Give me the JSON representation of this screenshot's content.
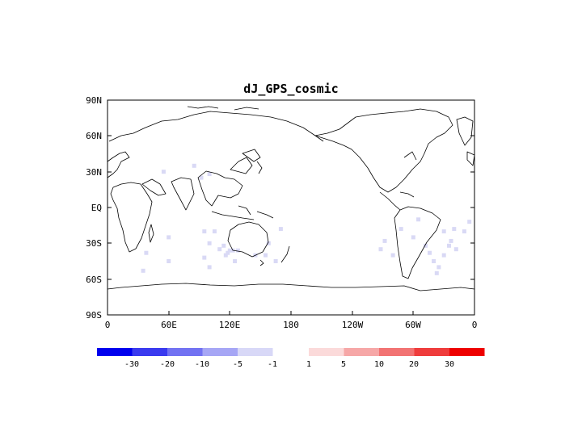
{
  "map": {
    "title": "dJ_GPS_cosmic",
    "projection": "cylindrical-equidistant",
    "center_longitude": 180,
    "lat_labels": [
      "90N",
      "60N",
      "30N",
      "EQ",
      "30S",
      "60S",
      "90S"
    ],
    "lon_labels": [
      "0",
      "60E",
      "120E",
      "180",
      "120W",
      "60W",
      "0"
    ],
    "coastline_color": "#000000",
    "cell_color": "#d9d9f5"
  },
  "colorbar": {
    "labels": [
      "-30",
      "-20",
      "-10",
      "-5",
      "-1",
      "1",
      "5",
      "10",
      "20",
      "30"
    ],
    "neg_colors": [
      "#0000ee",
      "#3a3aef",
      "#7272f2",
      "#a6a6f5",
      "#d8d8f7"
    ],
    "pos_colors": [
      "#fbdada",
      "#f6a7a7",
      "#f27373",
      "#ef3c3c",
      "#ee0000"
    ]
  },
  "cells": [
    {
      "lon": 35,
      "lat": -53
    },
    {
      "lon": 60,
      "lat": -45
    },
    {
      "lon": 60,
      "lat": -25
    },
    {
      "lon": 38,
      "lat": -38
    },
    {
      "lon": 100,
      "lat": -50
    },
    {
      "lon": 95,
      "lat": -42
    },
    {
      "lon": 105,
      "lat": -20
    },
    {
      "lon": 125,
      "lat": -45
    },
    {
      "lon": 95,
      "lat": -20
    },
    {
      "lon": 110,
      "lat": -35
    },
    {
      "lon": 100,
      "lat": -30
    },
    {
      "lon": 118,
      "lat": -38
    },
    {
      "lon": 120,
      "lat": -36
    },
    {
      "lon": 123,
      "lat": -36
    },
    {
      "lon": 128,
      "lat": -36
    },
    {
      "lon": 114,
      "lat": -32
    },
    {
      "lon": 116,
      "lat": -40
    },
    {
      "lon": 158,
      "lat": -30
    },
    {
      "lon": 145,
      "lat": -40
    },
    {
      "lon": 155,
      "lat": -40
    },
    {
      "lon": 165,
      "lat": -45
    },
    {
      "lon": 170,
      "lat": -18
    },
    {
      "lon": 340,
      "lat": -18
    },
    {
      "lon": 337,
      "lat": -28
    },
    {
      "lon": 316,
      "lat": -38
    },
    {
      "lon": 312,
      "lat": -32
    },
    {
      "lon": 320,
      "lat": -45
    },
    {
      "lon": 325,
      "lat": -50
    },
    {
      "lon": 330,
      "lat": -40
    },
    {
      "lon": 323,
      "lat": -55
    },
    {
      "lon": 330,
      "lat": -20
    },
    {
      "lon": 272,
      "lat": -28
    },
    {
      "lon": 268,
      "lat": -35
    },
    {
      "lon": 280,
      "lat": -40
    },
    {
      "lon": 288,
      "lat": -18
    },
    {
      "lon": 305,
      "lat": -10
    },
    {
      "lon": 300,
      "lat": -25
    },
    {
      "lon": 335,
      "lat": -32
    },
    {
      "lon": 342,
      "lat": -35
    },
    {
      "lon": 350,
      "lat": -20
    },
    {
      "lon": 355,
      "lat": -12
    },
    {
      "lon": 100,
      "lat": 28
    },
    {
      "lon": 92,
      "lat": 25
    },
    {
      "lon": 55,
      "lat": 30
    },
    {
      "lon": 85,
      "lat": 35
    }
  ]
}
